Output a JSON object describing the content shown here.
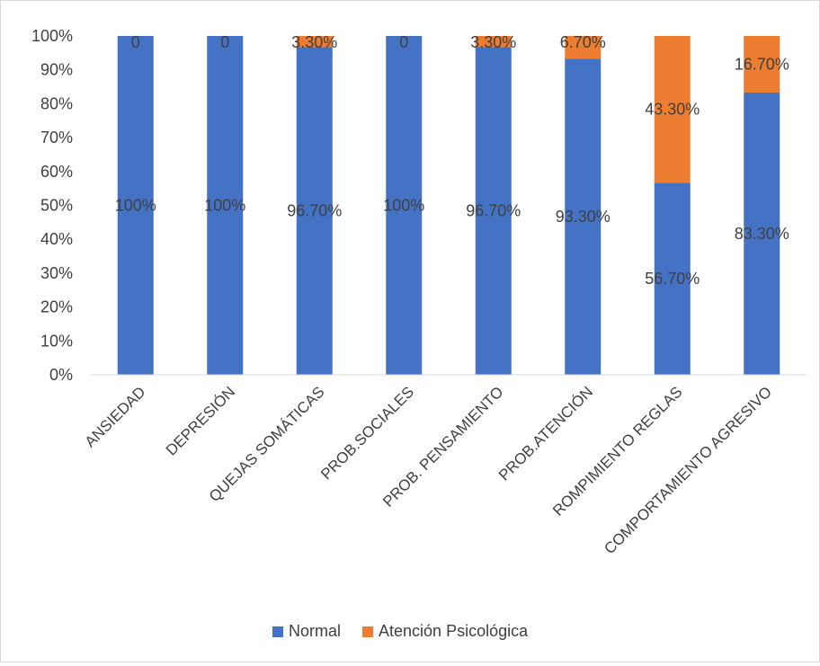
{
  "chart_data": {
    "type": "bar",
    "stacked": true,
    "percent_stacked": true,
    "categories": [
      "ANSIEDAD",
      "DEPRESIÓN",
      "QUEJAS SOMÁTICAS",
      "PROB.SOCIALES",
      "PROB. PENSAMIENTO",
      "PROB.ATENCIÓN",
      "ROMPIMIENTO REGLAS",
      "COMPORTAMIENTO AGRESIVO"
    ],
    "series": [
      {
        "name": "Normal",
        "color": "#4472c4",
        "values": [
          100,
          100,
          96.7,
          100,
          96.7,
          93.3,
          56.7,
          83.3
        ],
        "labels": [
          "100%",
          "100%",
          "96.70%",
          "100%",
          "96.70%",
          "93.30%",
          "56.70%",
          "83.30%"
        ]
      },
      {
        "name": "Atención Psicológica",
        "color": "#ed7d31",
        "values": [
          0,
          0,
          3.3,
          0,
          3.3,
          6.7,
          43.3,
          16.7
        ],
        "labels": [
          "0",
          "0",
          "3.30%",
          "0",
          "3.30%",
          "6.70%",
          "43.30%",
          "16.70%"
        ]
      }
    ],
    "title": "",
    "xlabel": "",
    "ylabel": "",
    "ylim": [
      0,
      100
    ],
    "yticks": [
      "0%",
      "10%",
      "20%",
      "30%",
      "40%",
      "50%",
      "60%",
      "70%",
      "80%",
      "90%",
      "100%"
    ],
    "grid": false,
    "legend_position": "bottom"
  }
}
